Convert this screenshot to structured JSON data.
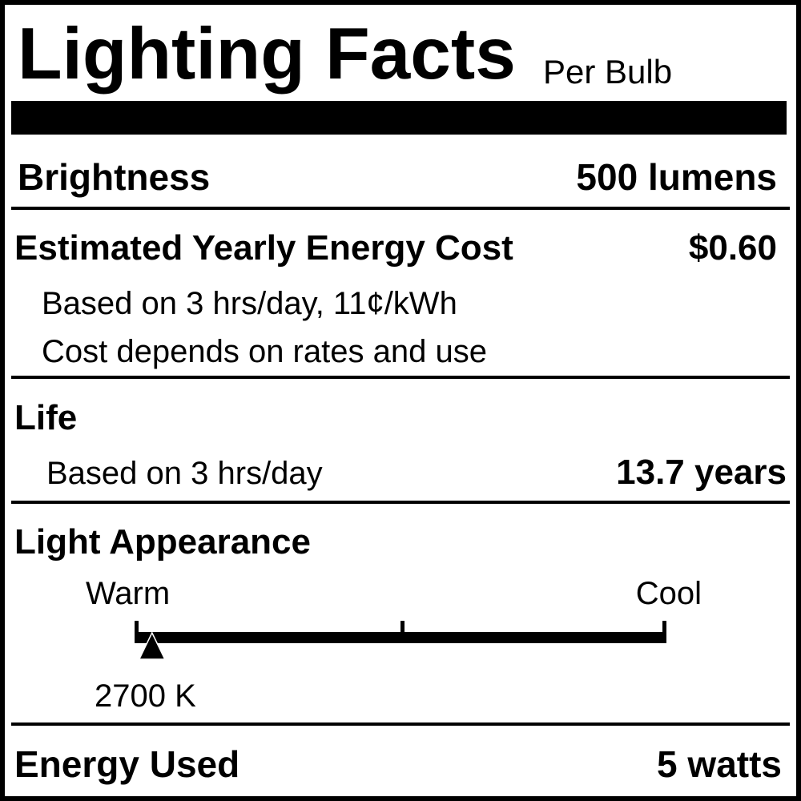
{
  "header": {
    "title": "Lighting Facts",
    "subtitle": "Per Bulb"
  },
  "brightness": {
    "label": "Brightness",
    "value": "500 lumens"
  },
  "energy_cost": {
    "label": "Estimated Yearly Energy Cost",
    "value": "$0.60",
    "note1": "Based on 3 hrs/day, 11¢/kWh",
    "note2": "Cost depends on rates and use"
  },
  "life": {
    "label": "Life",
    "note": "Based on 3 hrs/day",
    "value": "13.7 years"
  },
  "light_appearance": {
    "label": "Light Appearance",
    "warm_label": "Warm",
    "cool_label": "Cool",
    "value": "2700 K",
    "scale_position": 0.03
  },
  "energy_used": {
    "label": "Energy Used",
    "value": "5 watts"
  }
}
